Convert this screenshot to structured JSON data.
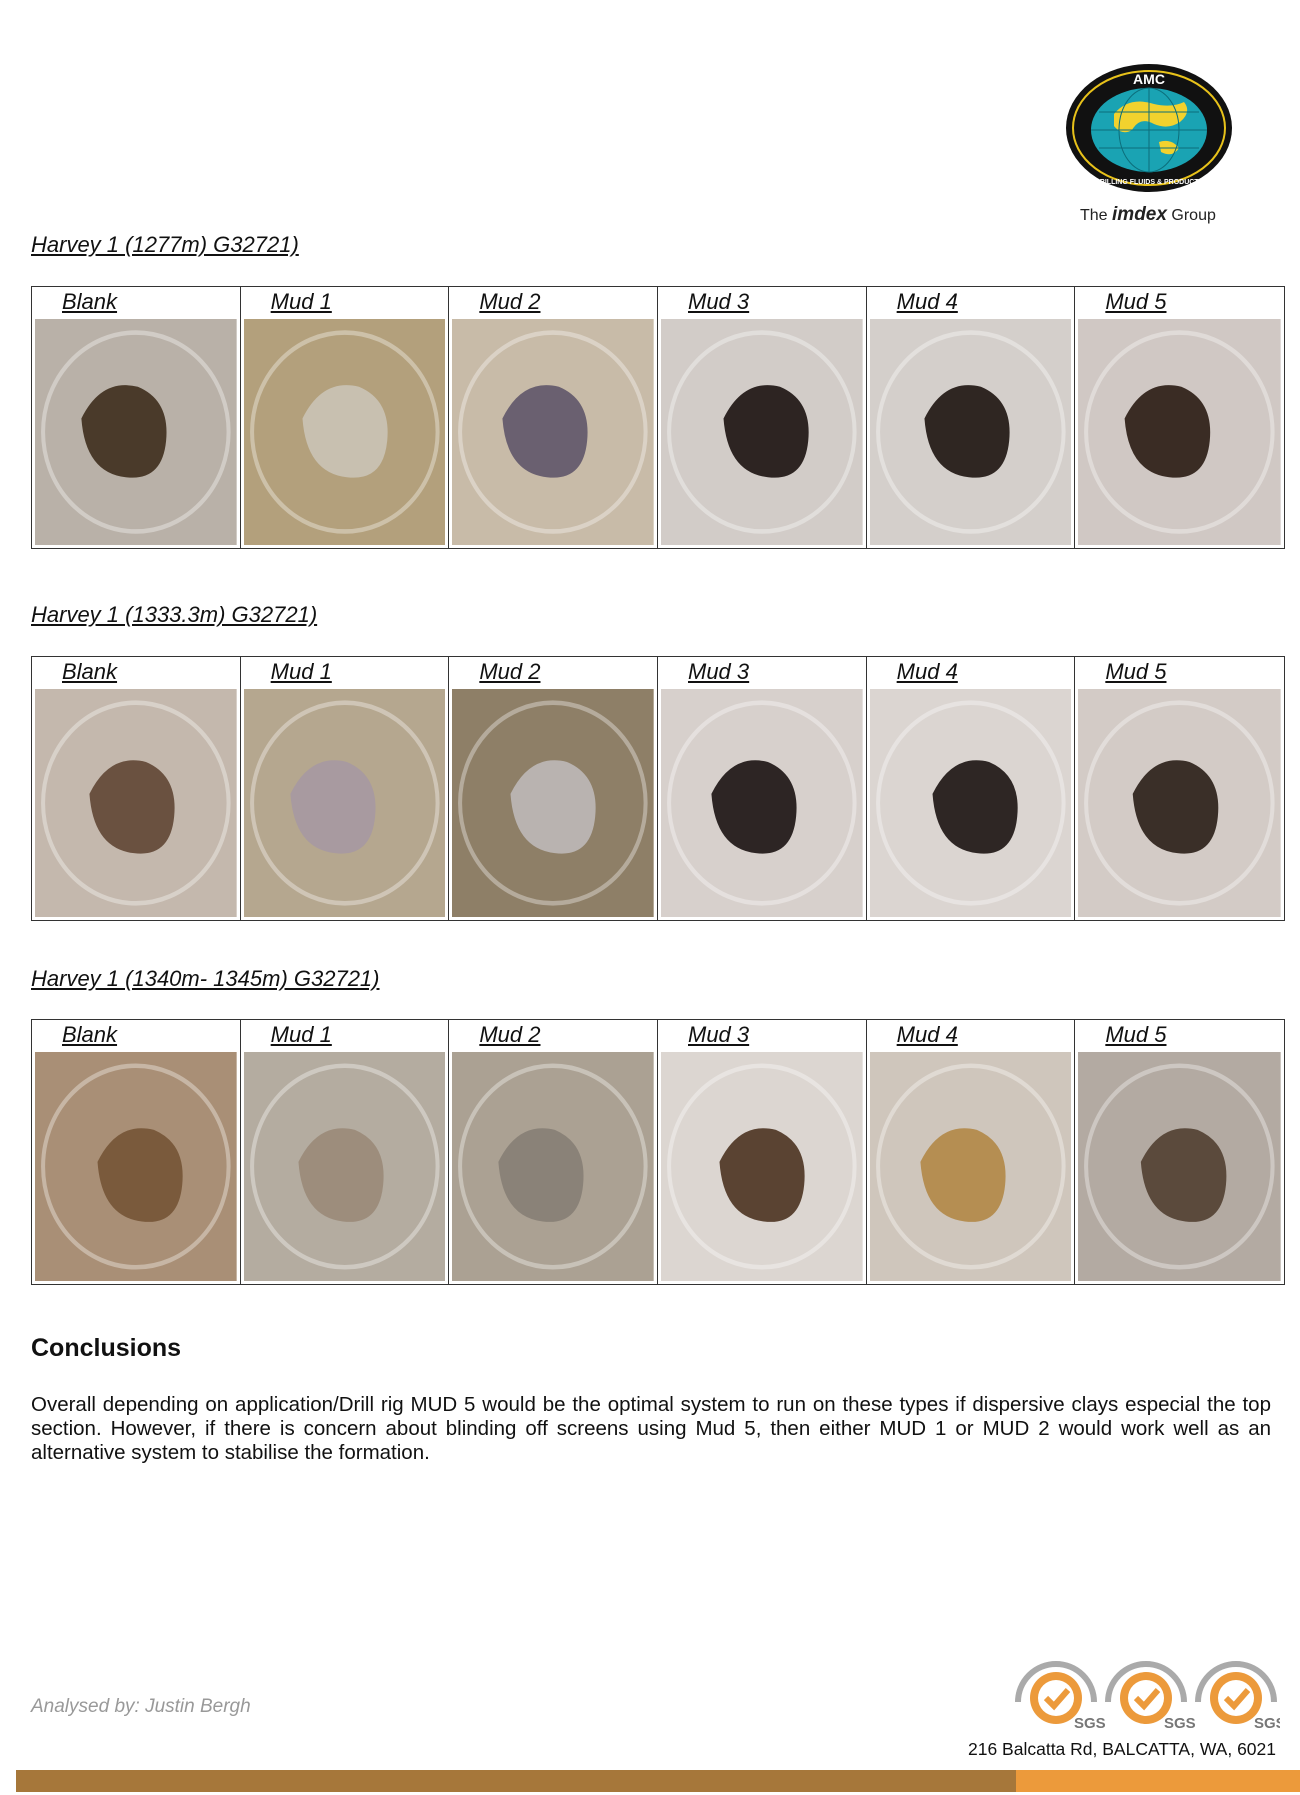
{
  "logo": {
    "text": "AMC",
    "ring_text": "DRILLING FLUIDS & PRODUCTS",
    "group_prefix": "The",
    "group_brand": "imdex",
    "group_suffix": "Group"
  },
  "sections": [
    {
      "title": "Harvey 1 (1277m) G32721)",
      "samples": [
        {
          "label": "Blank",
          "bg": "#b9b1a8",
          "rock": "#4a3a2a"
        },
        {
          "label": "Mud 1",
          "bg": "#b3a07c",
          "rock": "#c8c0b0"
        },
        {
          "label": "Mud 2",
          "bg": "#c8bba8",
          "rock": "#6a6070"
        },
        {
          "label": "Mud 3",
          "bg": "#d2ccc8",
          "rock": "#2d2422"
        },
        {
          "label": "Mud 4",
          "bg": "#d4cfcb",
          "rock": "#2f2622"
        },
        {
          "label": "Mud 5",
          "bg": "#d0c8c4",
          "rock": "#3a2c24"
        }
      ]
    },
    {
      "title": "Harvey 1 (1333.3m) G32721)",
      "samples": [
        {
          "label": "Blank",
          "bg": "#c4b8ad",
          "rock": "#6a5140"
        },
        {
          "label": "Mud 1",
          "bg": "#b5a78f",
          "rock": "#a89aa0"
        },
        {
          "label": "Mud 2",
          "bg": "#8e7f67",
          "rock": "#b9b3b0"
        },
        {
          "label": "Mud 3",
          "bg": "#d7d0cc",
          "rock": "#2d2524"
        },
        {
          "label": "Mud 4",
          "bg": "#dbd5d1",
          "rock": "#2e2624"
        },
        {
          "label": "Mud 5",
          "bg": "#d3cbc6",
          "rock": "#3a2f28"
        }
      ]
    },
    {
      "title": "Harvey 1 (1340m- 1345m) G32721)",
      "samples": [
        {
          "label": "Blank",
          "bg": "#a98f76",
          "rock": "#7a5a3c"
        },
        {
          "label": "Mud 1",
          "bg": "#b4aca0",
          "rock": "#9d8d7c"
        },
        {
          "label": "Mud 2",
          "bg": "#aba193",
          "rock": "#8a8278"
        },
        {
          "label": "Mud 3",
          "bg": "#dcd6d1",
          "rock": "#5a4332"
        },
        {
          "label": "Mud 4",
          "bg": "#cfc6bc",
          "rock": "#b58e52"
        },
        {
          "label": "Mud 5",
          "bg": "#b3aaa2",
          "rock": "#5b4a3c"
        }
      ]
    }
  ],
  "conclusions": {
    "heading": "Conclusions",
    "body": "Overall depending on application/Drill rig MUD 5 would be the optimal system to run on these types if dispersive clays especial the top section. However, if there is concern about blinding off screens using Mud 5, then either MUD 1 or MUD 2 would work well as an alternative system to stabilise the formation."
  },
  "footer": {
    "analysed_by": "Analysed by: Justin Bergh",
    "address": "216 Balcatta Rd, BALCATTA, WA, 6021",
    "cert_label": "SGS",
    "bar_color": "#a6773a",
    "accent_color": "#ec9a3b"
  }
}
